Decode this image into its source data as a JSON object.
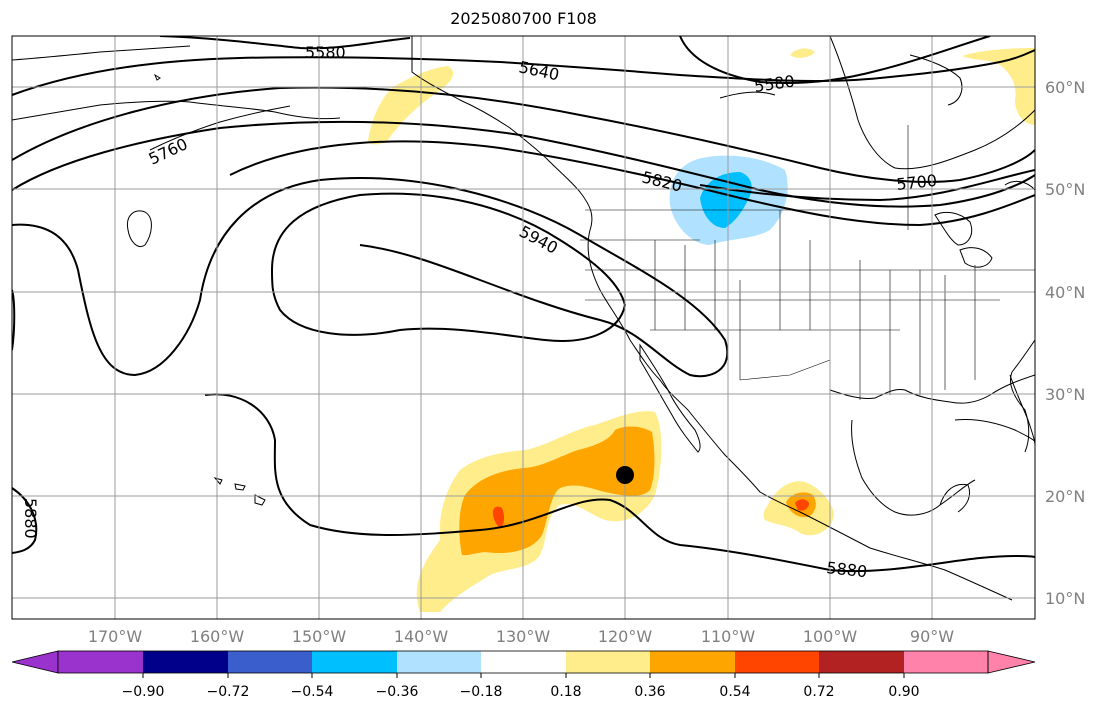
{
  "title": "2025080700 F108",
  "map": {
    "projection": "cylindrical",
    "lon_range": [
      -180,
      -80
    ],
    "lat_range": [
      8,
      65
    ],
    "grid": true,
    "lon_labels": [
      "170°W",
      "160°W",
      "150°W",
      "140°W",
      "130°W",
      "120°W",
      "110°W",
      "100°W",
      "90°W"
    ],
    "lat_labels": [
      "60°N",
      "50°N",
      "40°N",
      "30°N",
      "20°N",
      "10°N"
    ],
    "contour_labels": [
      "5580",
      "5640",
      "5580",
      "5760",
      "5820",
      "5700",
      "5940",
      "5880",
      "5880"
    ],
    "marker": {
      "lon": -120,
      "lat": 22,
      "color": "#000000"
    }
  },
  "colorbar": {
    "ticks": [
      "−0.90",
      "−0.72",
      "−0.54",
      "−0.36",
      "−0.18",
      "0.18",
      "0.36",
      "0.54",
      "0.72",
      "0.90"
    ],
    "colors": [
      "#9a32cd",
      "#00008b",
      "#3a5fcd",
      "#00bfff",
      "#b0e2ff",
      "#ffffff",
      "#ffec8b",
      "#ffa500",
      "#ff4500",
      "#b22222",
      "#ff82ab"
    ]
  }
}
